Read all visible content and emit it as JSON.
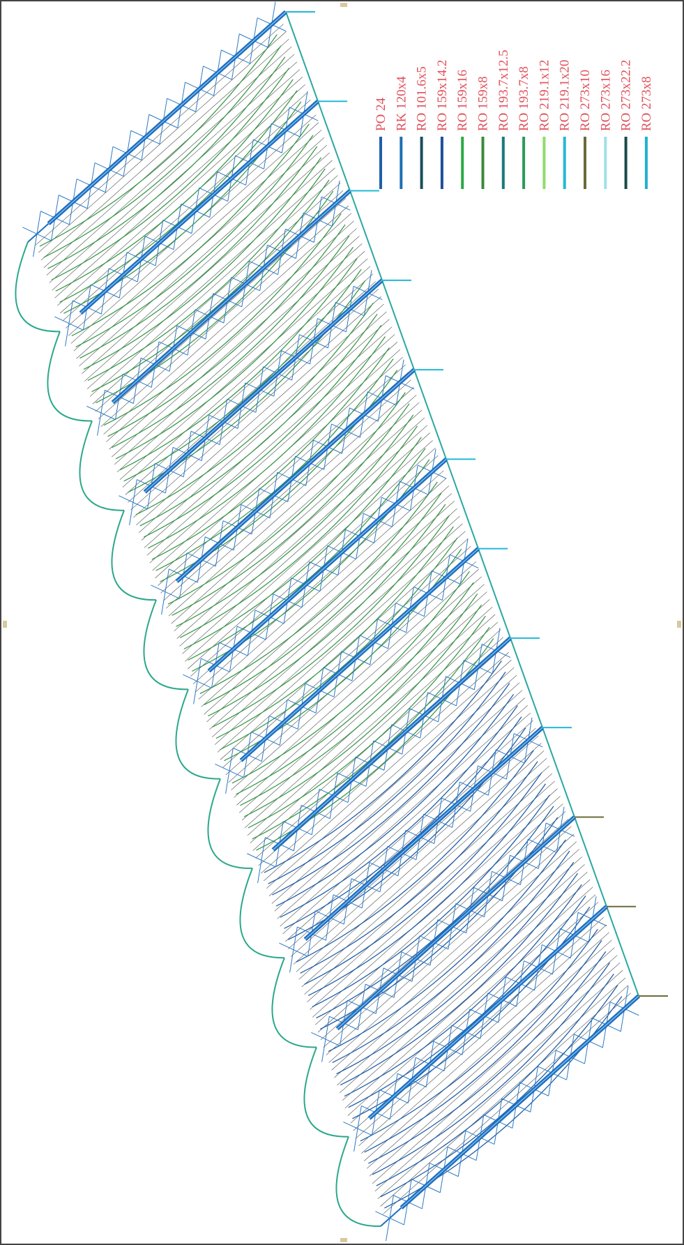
{
  "legend": [
    {
      "label": "PO 24",
      "color": "#1f5fa8"
    },
    {
      "label": "RK 120x4",
      "color": "#1e6fb5"
    },
    {
      "label": "RO 101.6x5",
      "color": "#1a4f5a"
    },
    {
      "label": "RO 159x14.2",
      "color": "#1d4f9a"
    },
    {
      "label": "RO 159x16",
      "color": "#2ea84a"
    },
    {
      "label": "RO 159x8",
      "color": "#3a8a3a"
    },
    {
      "label": "RO 193.7x12.5",
      "color": "#1a7a7a"
    },
    {
      "label": "RO 193.7x8",
      "color": "#2a9a5a"
    },
    {
      "label": "RO 219.1x12",
      "color": "#8fdc6a"
    },
    {
      "label": "RO 219.1x20",
      "color": "#22b8d8"
    },
    {
      "label": "RO 273x10",
      "color": "#6a6a3a"
    },
    {
      "label": "RO 273x16",
      "color": "#a0e0e8"
    },
    {
      "label": "RO 273x22.2",
      "color": "#1a4a4a"
    },
    {
      "label": "RO 273x8",
      "color": "#20b0d0"
    }
  ]
}
